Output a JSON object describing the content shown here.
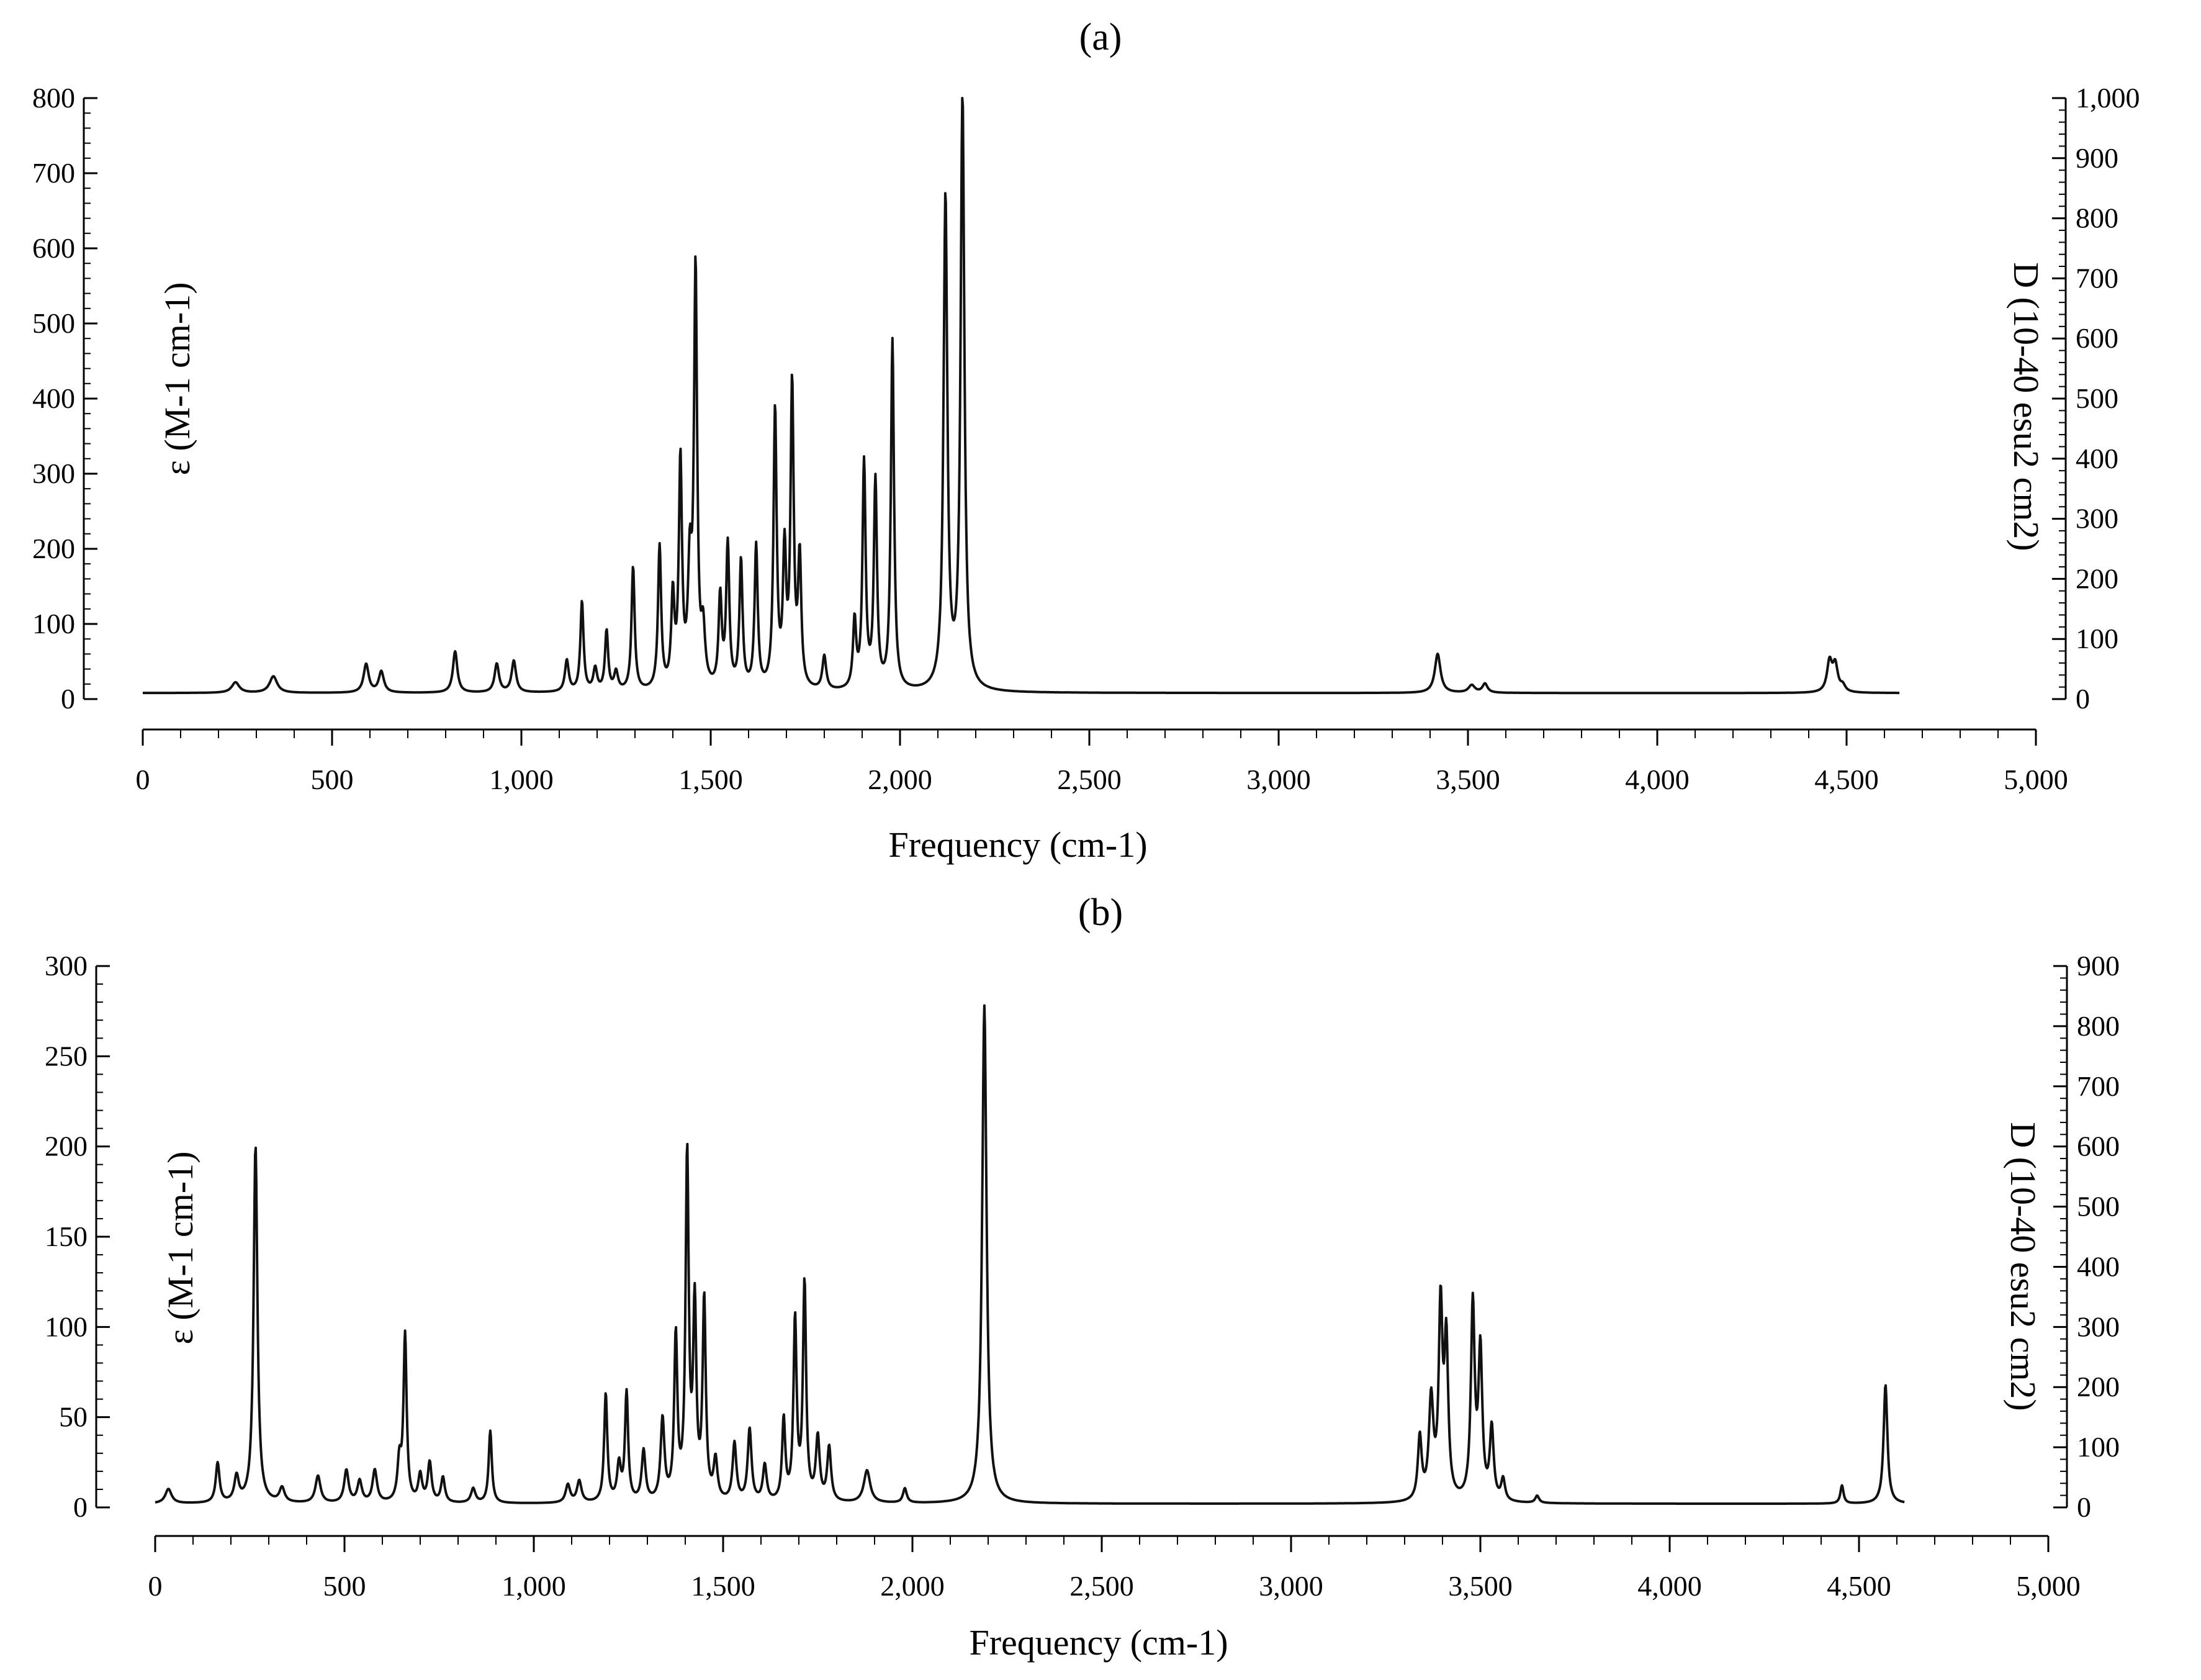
{
  "chart_data": [
    {
      "type": "line",
      "panel_label": "(a)",
      "xlabel": "Frequency (cm-1)",
      "ylabel_left": "ε (M-1 cm-1)",
      "ylabel_right": "D (10-40 esu2 cm2)",
      "xlim": [
        0,
        5000
      ],
      "ylim_left": [
        0,
        800
      ],
      "ylim_right": [
        0,
        1000
      ],
      "x_ticks": [
        "0",
        "500",
        "1,000",
        "1,500",
        "2,000",
        "2,500",
        "3,000",
        "3,500",
        "4,000",
        "4,500",
        "5,000"
      ],
      "y_ticks_left": [
        "0",
        "100",
        "200",
        "300",
        "400",
        "500",
        "600",
        "700",
        "800"
      ],
      "y_ticks_right": [
        "0",
        "100",
        "200",
        "300",
        "400",
        "500",
        "600",
        "700",
        "800",
        "900",
        "1,000"
      ],
      "x_range": [
        0,
        4640
      ],
      "baseline": 8,
      "grid": false,
      "line_color": "#111111",
      "peaks": [
        {
          "x": 245,
          "y": 14,
          "w": 12
        },
        {
          "x": 345,
          "y": 22,
          "w": 12
        },
        {
          "x": 590,
          "y": 38,
          "w": 8
        },
        {
          "x": 630,
          "y": 28,
          "w": 8
        },
        {
          "x": 825,
          "y": 55,
          "w": 7
        },
        {
          "x": 935,
          "y": 38,
          "w": 7
        },
        {
          "x": 980,
          "y": 42,
          "w": 7
        },
        {
          "x": 1120,
          "y": 42,
          "w": 6
        },
        {
          "x": 1160,
          "y": 120,
          "w": 5
        },
        {
          "x": 1195,
          "y": 30,
          "w": 6
        },
        {
          "x": 1225,
          "y": 80,
          "w": 5
        },
        {
          "x": 1250,
          "y": 25,
          "w": 6
        },
        {
          "x": 1295,
          "y": 165,
          "w": 5
        },
        {
          "x": 1365,
          "y": 190,
          "w": 5
        },
        {
          "x": 1400,
          "y": 120,
          "w": 5
        },
        {
          "x": 1420,
          "y": 300,
          "w": 5
        },
        {
          "x": 1445,
          "y": 150,
          "w": 6
        },
        {
          "x": 1460,
          "y": 550,
          "w": 5
        },
        {
          "x": 1480,
          "y": 70,
          "w": 6
        },
        {
          "x": 1525,
          "y": 120,
          "w": 5
        },
        {
          "x": 1545,
          "y": 190,
          "w": 5
        },
        {
          "x": 1580,
          "y": 170,
          "w": 5
        },
        {
          "x": 1620,
          "y": 190,
          "w": 5
        },
        {
          "x": 1670,
          "y": 370,
          "w": 5
        },
        {
          "x": 1695,
          "y": 175,
          "w": 5
        },
        {
          "x": 1715,
          "y": 400,
          "w": 5
        },
        {
          "x": 1735,
          "y": 170,
          "w": 5
        },
        {
          "x": 1800,
          "y": 45,
          "w": 6
        },
        {
          "x": 1880,
          "y": 90,
          "w": 5
        },
        {
          "x": 1905,
          "y": 300,
          "w": 5
        },
        {
          "x": 1935,
          "y": 275,
          "w": 5
        },
        {
          "x": 1980,
          "y": 465,
          "w": 5
        },
        {
          "x": 2120,
          "y": 655,
          "w": 6
        },
        {
          "x": 2165,
          "y": 790,
          "w": 6
        },
        {
          "x": 3420,
          "y": 52,
          "w": 9
        },
        {
          "x": 3510,
          "y": 10,
          "w": 10
        },
        {
          "x": 3545,
          "y": 12,
          "w": 8
        },
        {
          "x": 4455,
          "y": 40,
          "w": 8
        },
        {
          "x": 4470,
          "y": 35,
          "w": 8
        },
        {
          "x": 4490,
          "y": 8,
          "w": 8
        }
      ]
    },
    {
      "type": "line",
      "panel_label": "(b)",
      "xlabel": "Frequency (cm-1)",
      "ylabel_left": "ε (M-1 cm-1)",
      "ylabel_right": "D (10-40 esu2 cm2)",
      "xlim": [
        0,
        5000
      ],
      "ylim_left": [
        0,
        300
      ],
      "ylim_right": [
        0,
        900
      ],
      "x_ticks": [
        "0",
        "500",
        "1,000",
        "1,500",
        "2,000",
        "2,500",
        "3,000",
        "3,500",
        "4,000",
        "4,500",
        "5,000"
      ],
      "y_ticks_left": [
        "0",
        "50",
        "100",
        "150",
        "200",
        "250",
        "300"
      ],
      "y_ticks_right": [
        "0",
        "100",
        "200",
        "300",
        "400",
        "500",
        "600",
        "700",
        "800",
        "900"
      ],
      "x_range": [
        0,
        4620
      ],
      "baseline": 2,
      "grid": false,
      "line_color": "#111111",
      "peaks": [
        {
          "x": 35,
          "y": 8,
          "w": 10
        },
        {
          "x": 165,
          "y": 22,
          "w": 6
        },
        {
          "x": 215,
          "y": 14,
          "w": 7
        },
        {
          "x": 265,
          "y": 198,
          "w": 6
        },
        {
          "x": 335,
          "y": 8,
          "w": 8
        },
        {
          "x": 430,
          "y": 15,
          "w": 8
        },
        {
          "x": 505,
          "y": 18,
          "w": 7
        },
        {
          "x": 540,
          "y": 12,
          "w": 7
        },
        {
          "x": 580,
          "y": 18,
          "w": 7
        },
        {
          "x": 645,
          "y": 22,
          "w": 6
        },
        {
          "x": 660,
          "y": 92,
          "w": 5
        },
        {
          "x": 700,
          "y": 15,
          "w": 6
        },
        {
          "x": 725,
          "y": 22,
          "w": 6
        },
        {
          "x": 760,
          "y": 14,
          "w": 6
        },
        {
          "x": 840,
          "y": 8,
          "w": 7
        },
        {
          "x": 885,
          "y": 40,
          "w": 5
        },
        {
          "x": 1090,
          "y": 10,
          "w": 7
        },
        {
          "x": 1120,
          "y": 12,
          "w": 7
        },
        {
          "x": 1190,
          "y": 60,
          "w": 5
        },
        {
          "x": 1225,
          "y": 20,
          "w": 6
        },
        {
          "x": 1245,
          "y": 60,
          "w": 5
        },
        {
          "x": 1290,
          "y": 28,
          "w": 6
        },
        {
          "x": 1340,
          "y": 45,
          "w": 6
        },
        {
          "x": 1375,
          "y": 90,
          "w": 5
        },
        {
          "x": 1405,
          "y": 190,
          "w": 5
        },
        {
          "x": 1425,
          "y": 105,
          "w": 5
        },
        {
          "x": 1450,
          "y": 110,
          "w": 5
        },
        {
          "x": 1480,
          "y": 22,
          "w": 6
        },
        {
          "x": 1530,
          "y": 32,
          "w": 6
        },
        {
          "x": 1570,
          "y": 40,
          "w": 6
        },
        {
          "x": 1610,
          "y": 20,
          "w": 6
        },
        {
          "x": 1660,
          "y": 45,
          "w": 5
        },
        {
          "x": 1690,
          "y": 100,
          "w": 5
        },
        {
          "x": 1715,
          "y": 120,
          "w": 5
        },
        {
          "x": 1750,
          "y": 35,
          "w": 6
        },
        {
          "x": 1780,
          "y": 30,
          "w": 6
        },
        {
          "x": 1880,
          "y": 18,
          "w": 10
        },
        {
          "x": 1980,
          "y": 8,
          "w": 6
        },
        {
          "x": 2190,
          "y": 276,
          "w": 7
        },
        {
          "x": 3340,
          "y": 35,
          "w": 6
        },
        {
          "x": 3370,
          "y": 55,
          "w": 7
        },
        {
          "x": 3395,
          "y": 105,
          "w": 6
        },
        {
          "x": 3410,
          "y": 85,
          "w": 6
        },
        {
          "x": 3480,
          "y": 108,
          "w": 6
        },
        {
          "x": 3500,
          "y": 82,
          "w": 6
        },
        {
          "x": 3530,
          "y": 40,
          "w": 6
        },
        {
          "x": 3560,
          "y": 12,
          "w": 6
        },
        {
          "x": 3650,
          "y": 4,
          "w": 6
        },
        {
          "x": 4455,
          "y": 10,
          "w": 5
        },
        {
          "x": 4570,
          "y": 66,
          "w": 6
        }
      ]
    }
  ]
}
